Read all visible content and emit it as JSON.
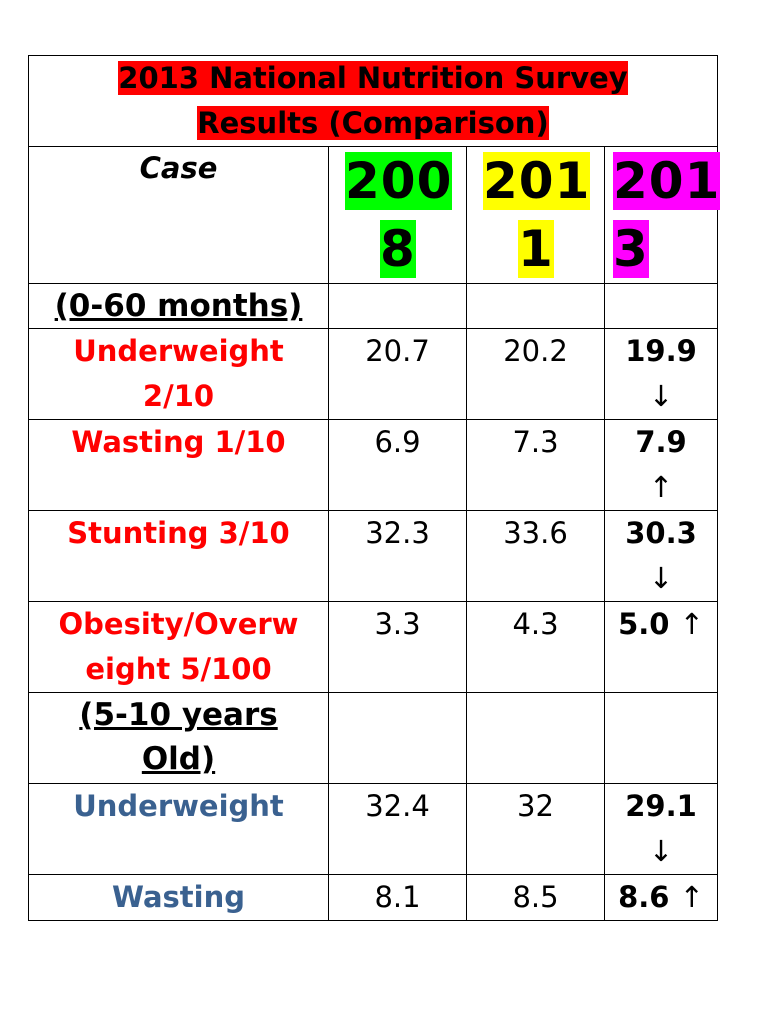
{
  "title_line1": "2013 National Nutrition Survey",
  "title_line2": "Results (Comparison)",
  "header": {
    "case": "Case",
    "y2008_a": "200",
    "y2008_b": "8",
    "y2011_a": "201",
    "y2011_b": "1",
    "y2013_a": "201",
    "y2013_b": "3"
  },
  "section1": "(0-60 months)",
  "section2_a": "(5-10 years",
  "section2_b": "Old)",
  "rows": [
    {
      "label_a": "Underweight",
      "label_b": "2/10",
      "v2008": "20.7",
      "v2011": "20.2",
      "v2013": "19.9",
      "arrow": "↓"
    },
    {
      "label_a": "Wasting 1/10",
      "label_b": "",
      "v2008": "6.9",
      "v2011": "7.3",
      "v2013": "7.9",
      "arrow": "↑"
    },
    {
      "label_a": "Stunting 3/10",
      "label_b": "",
      "v2008": "32.3",
      "v2011": "33.6",
      "v2013": "30.3",
      "arrow": "↓"
    },
    {
      "label_a": "Obesity/Overw",
      "label_b": "eight 5/100",
      "v2008": "3.3",
      "v2011": "4.3",
      "v2013": "5.0",
      "arrow": "↑"
    },
    {
      "label_a": "Underweight",
      "label_b": "",
      "v2008": "32.4",
      "v2011": "32",
      "v2013": "29.1",
      "arrow": "↓"
    },
    {
      "label_a": "Wasting",
      "label_b": "",
      "v2008": "8.1",
      "v2011": "8.5",
      "v2013": "8.6",
      "arrow": "↑"
    }
  ],
  "colors": {
    "title_bg": "#ff0000",
    "y2008_bg": "#00ff00",
    "y2011_bg": "#ffff00",
    "y2013_bg": "#ff00ff",
    "label_red": "#ff0000",
    "label_blue": "#3a6190"
  }
}
